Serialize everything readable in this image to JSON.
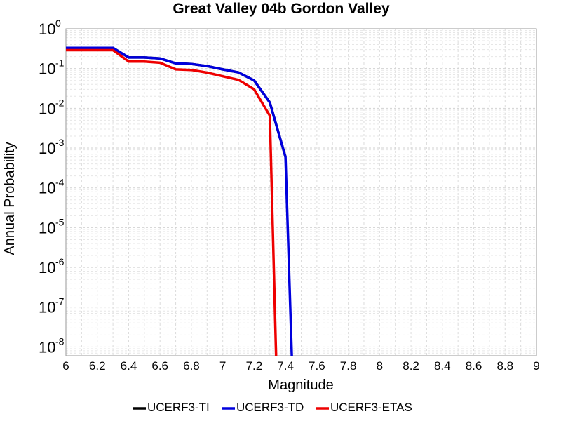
{
  "chart_data": {
    "type": "line",
    "title": "Great Valley 04b Gordon Valley",
    "xlabel": "Magnitude",
    "ylabel": "Annual Probability",
    "xlim": [
      6,
      9
    ],
    "ylim": [
      6e-09,
      1
    ],
    "yscale": "log",
    "grid": true,
    "legend_position": "bottom",
    "x_ticks": [
      "6",
      "6.2",
      "6.4",
      "6.6",
      "6.8",
      "7",
      "7.2",
      "7.4",
      "7.6",
      "7.8",
      "8",
      "8.2",
      "8.4",
      "8.6",
      "8.8",
      "9"
    ],
    "y_ticks": [
      {
        "base": "10",
        "exp": "0"
      },
      {
        "base": "10",
        "exp": "-1"
      },
      {
        "base": "10",
        "exp": "-2"
      },
      {
        "base": "10",
        "exp": "-3"
      },
      {
        "base": "10",
        "exp": "-4"
      },
      {
        "base": "10",
        "exp": "-5"
      },
      {
        "base": "10",
        "exp": "-6"
      },
      {
        "base": "10",
        "exp": "-7"
      },
      {
        "base": "10",
        "exp": "-8"
      }
    ],
    "series": [
      {
        "name": "UCERF3-TI",
        "color": "#000000",
        "x": [
          6.0,
          6.1,
          6.2,
          6.3,
          6.4,
          6.5,
          6.6,
          6.7,
          6.8,
          6.9,
          7.0,
          7.1,
          7.2,
          7.3,
          7.4
        ],
        "y": [
          0.33,
          0.33,
          0.33,
          0.33,
          0.19,
          0.19,
          0.18,
          0.135,
          0.13,
          0.115,
          0.095,
          0.08,
          0.05,
          0.014,
          0.0006
        ]
      },
      {
        "name": "UCERF3-TD",
        "color": "#0000dd",
        "x": [
          6.0,
          6.1,
          6.2,
          6.3,
          6.4,
          6.5,
          6.6,
          6.7,
          6.8,
          6.9,
          7.0,
          7.1,
          7.2,
          7.3,
          7.4,
          7.44
        ],
        "y": [
          0.33,
          0.33,
          0.33,
          0.33,
          0.19,
          0.19,
          0.18,
          0.135,
          0.13,
          0.115,
          0.095,
          0.08,
          0.05,
          0.014,
          0.0006,
          6e-09
        ]
      },
      {
        "name": "UCERF3-ETAS",
        "color": "#ee0000",
        "x": [
          6.0,
          6.1,
          6.2,
          6.3,
          6.4,
          6.5,
          6.6,
          6.7,
          6.8,
          6.9,
          7.0,
          7.1,
          7.2,
          7.3,
          7.34
        ],
        "y": [
          0.29,
          0.29,
          0.29,
          0.29,
          0.15,
          0.15,
          0.14,
          0.095,
          0.092,
          0.079,
          0.064,
          0.052,
          0.03,
          0.0065,
          6e-09
        ]
      }
    ]
  }
}
